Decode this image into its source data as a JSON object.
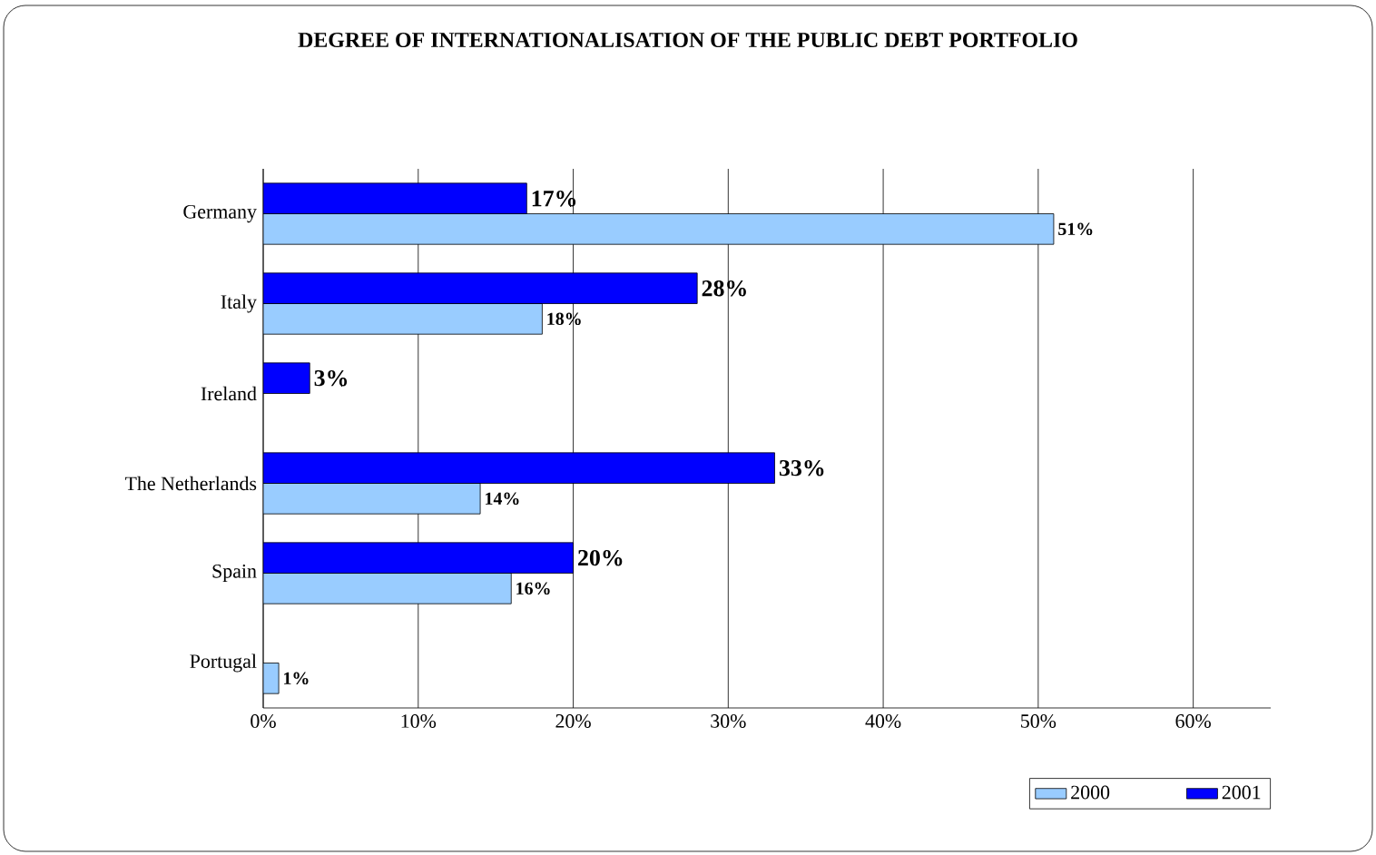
{
  "chart_data": {
    "type": "bar",
    "orientation": "horizontal",
    "title": "DEGREE OF INTERNATIONALISATION OF THE PUBLIC DEBT PORTFOLIO",
    "categories": [
      "Germany",
      "Italy",
      "Ireland",
      "The Netherlands",
      "Spain",
      "Portugal"
    ],
    "series": [
      {
        "name": "2000",
        "color": "#99ccff",
        "values": [
          51,
          18,
          null,
          14,
          16,
          1
        ],
        "value_labels": [
          "51%",
          "18%",
          null,
          "14%",
          "16%",
          "1%"
        ]
      },
      {
        "name": "2001",
        "color": "#0000ff",
        "values": [
          17,
          28,
          3,
          33,
          20,
          null
        ],
        "value_labels": [
          "17%",
          "28%",
          "3%",
          "33%",
          "20%",
          null
        ]
      }
    ],
    "xlim": [
      0,
      65
    ],
    "xticks": [
      {
        "value": 0,
        "label": "0%"
      },
      {
        "value": 10,
        "label": "10%"
      },
      {
        "value": 20,
        "label": "20%"
      },
      {
        "value": 30,
        "label": "30%"
      },
      {
        "value": 40,
        "label": "40%"
      },
      {
        "value": 50,
        "label": "50%"
      },
      {
        "value": 60,
        "label": "60%"
      }
    ],
    "grid": "x",
    "legend": "bottom right"
  }
}
